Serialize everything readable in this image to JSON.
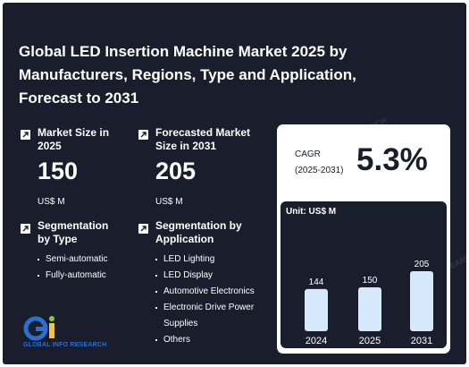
{
  "title": "Global LED Insertion Machine Market 2025 by Manufacturers, Regions, Type and Application, Forecast to 2031",
  "market_size": {
    "label": "Market Size in 2025",
    "value": "150",
    "unit": "US$ M"
  },
  "forecast_size": {
    "label": "Forecasted Market Size in 2031",
    "value": "205",
    "unit": "US$ M"
  },
  "segmentation_type": {
    "label": "Segmentation by Type",
    "items": [
      "Semi-automatic",
      "Fully-automatic"
    ]
  },
  "segmentation_application": {
    "label": "Segmentation by Application",
    "items": [
      "LED Lighting",
      "LED Display",
      "Automotive Electronics",
      "Electronic Drive Power Supplies",
      "Others"
    ]
  },
  "cagr": {
    "label": "CAGR",
    "period": "(2025-2031)",
    "value": "5.3%"
  },
  "logo": {
    "text": "GLOBAL INFO RESEARCH"
  },
  "watermark": "GLOBAL INFO RESEARCH",
  "colors": {
    "background": "#1a1e2c",
    "bar": "#d6e8fb",
    "accent": "#2b6fd1"
  },
  "chart_data": {
    "type": "bar",
    "unit_label": "Unit: US$ M",
    "categories": [
      "2024",
      "2025",
      "2031"
    ],
    "values": [
      144,
      150,
      205
    ],
    "data_labels": [
      "144",
      "150",
      "205"
    ]
  }
}
